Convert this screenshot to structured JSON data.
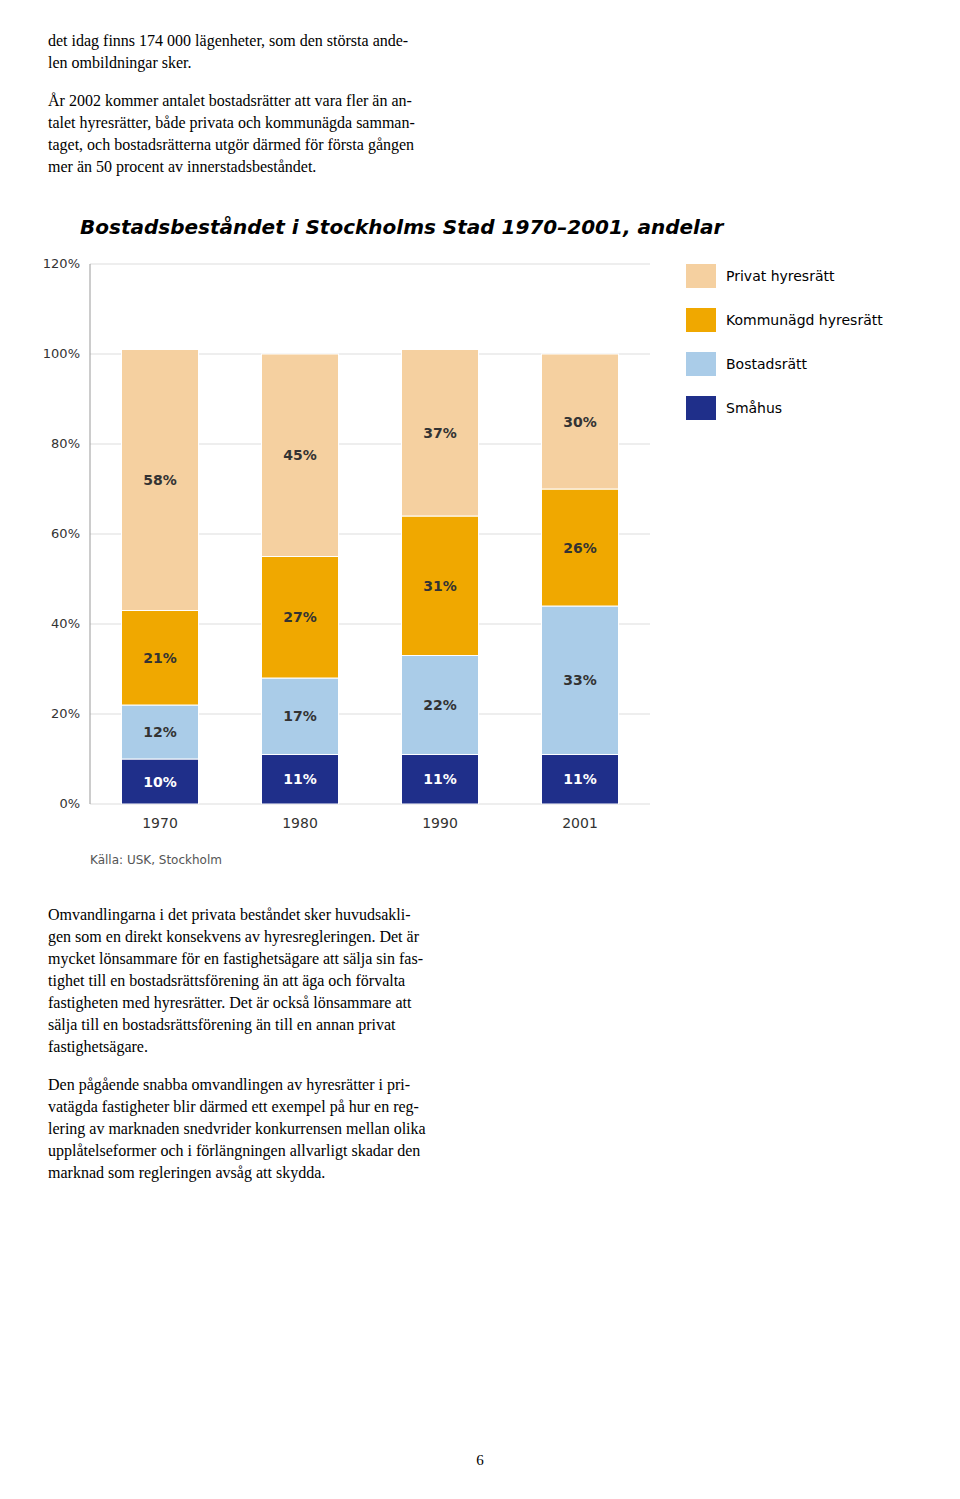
{
  "text_blocks": [
    "det idag finns 174 000 lägenheter, som den största ande-\nlen ombildningar sker.",
    "År 2002 kommer antalet bostadsrätter att vara fler än an-\ntalet hyresrätter, både privata och kommunägda samman-\ntaget, och bostadsrätterna utgör därmed för första gången\nmer än 50 procent av innerstadsbeståndet.",
    "Omvandlingarna i det privata beståndet sker huvudsakli-\ngen som en direkt konsekvens av hyresregleringen. Det är\nmycket lönsammare för en fastighetsägare att sälja sin fas-\ntighet till en bostadsrättsförening än att äga och förvalta\nfastigheten med hyresrätter. Det är också lönsammare att\nsälja till en bostadsrättsförening än till en annan privat\nfastighetsägare.",
    "Den pågående snabba omvandlingen av hyresrätter i pri-\nvatägda fastigheter blir därmed ett exempel på hur en reg-\nlering av marknaden snedvrider konkurrensen mellan olika\nupplåtelseformer och i förlängningen allvarligt skadar den\nmarknad som regleringen avsåg att skydda."
  ],
  "page_number": "6",
  "chart_data": {
    "type": "bar",
    "title": "Bostadsbeståndet i Stockholms Stad 1970–2001, andelar",
    "source": "Källa: USK, Stockholm",
    "categories": [
      "1970",
      "1980",
      "1990",
      "2001"
    ],
    "series": [
      {
        "name": "Småhus",
        "color": "#1f2f8a",
        "values": [
          10,
          11,
          11,
          11
        ],
        "value_labels": [
          "10%",
          "11%",
          "11%",
          "11%"
        ]
      },
      {
        "name": "Bostadsrätt",
        "color": "#aacce8",
        "values": [
          12,
          17,
          22,
          33
        ],
        "value_labels": [
          "12%",
          "17%",
          "22%",
          "33%"
        ]
      },
      {
        "name": "Kommunägd hyresrätt",
        "color": "#f0a800",
        "values": [
          21,
          27,
          31,
          26
        ],
        "value_labels": [
          "21%",
          "27%",
          "31%",
          "26%"
        ]
      },
      {
        "name": "Privat hyresrätt",
        "color": "#f5d0a0",
        "values": [
          58,
          45,
          37,
          30
        ],
        "value_labels": [
          "58%",
          "45%",
          "37%",
          "30%"
        ]
      }
    ],
    "ylim": [
      0,
      120
    ],
    "yticks": [
      {
        "value": 0,
        "label": "0%"
      },
      {
        "value": 20,
        "label": "20%"
      },
      {
        "value": 40,
        "label": "40%"
      },
      {
        "value": 60,
        "label": "60%"
      },
      {
        "value": 80,
        "label": "80%"
      },
      {
        "value": 100,
        "label": "100%"
      },
      {
        "value": 120,
        "label": "120%"
      }
    ],
    "stacked": true,
    "data_labels": true,
    "grid": true,
    "legend": "right"
  }
}
